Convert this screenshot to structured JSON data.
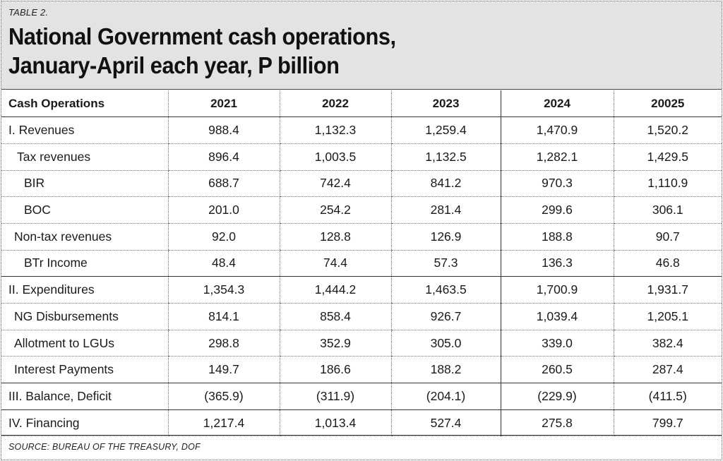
{
  "table_label": "TABLE 2.",
  "title_line1": "National Government cash operations,",
  "title_line2": "January-April each year, P billion",
  "headers": [
    "Cash Operations",
    "2021",
    "2022",
    "2023",
    "2024",
    "20025"
  ],
  "rows": [
    {
      "label": "I. Revenues",
      "values": [
        "988.4",
        "1,132.3",
        "1,259.4",
        "1,470.9",
        "1,520.2"
      ]
    },
    {
      "label": "Tax revenues",
      "values": [
        "896.4",
        "1,003.5",
        "1,132.5",
        "1,282.1",
        "1,429.5"
      ]
    },
    {
      "label": "BIR",
      "values": [
        "688.7",
        "742.4",
        "841.2",
        "970.3",
        "1,110.9"
      ]
    },
    {
      "label": "BOC",
      "values": [
        "201.0",
        "254.2",
        "281.4",
        "299.6",
        "306.1"
      ]
    },
    {
      "label": "Non-tax revenues",
      "values": [
        "92.0",
        "128.8",
        "126.9",
        "188.8",
        "90.7"
      ]
    },
    {
      "label": "BTr Income",
      "values": [
        "48.4",
        "74.4",
        "57.3",
        "136.3",
        "46.8"
      ]
    },
    {
      "label": "II. Expenditures",
      "values": [
        "1,354.3",
        "1,444.2",
        "1,463.5",
        "1,700.9",
        "1,931.7"
      ]
    },
    {
      "label": "NG Disbursements",
      "values": [
        "814.1",
        "858.4",
        "926.7",
        "1,039.4",
        "1,205.1"
      ]
    },
    {
      "label": "Allotment to LGUs",
      "values": [
        "298.8",
        "352.9",
        "305.0",
        "339.0",
        "382.4"
      ]
    },
    {
      "label": "Interest Payments",
      "values": [
        "149.7",
        "186.6",
        "188.2",
        "260.5",
        "287.4"
      ]
    },
    {
      "label": "III. Balance, Deficit",
      "values": [
        "(365.9)",
        "(311.9)",
        "(204.1)",
        "(229.9)",
        "(411.5)"
      ]
    },
    {
      "label": "IV. Financing",
      "values": [
        "1,217.4",
        "1,013.4",
        "527.4",
        "275.8",
        "799.7"
      ]
    }
  ],
  "source": "SOURCE: BUREAU OF THE TREASURY, DOF"
}
